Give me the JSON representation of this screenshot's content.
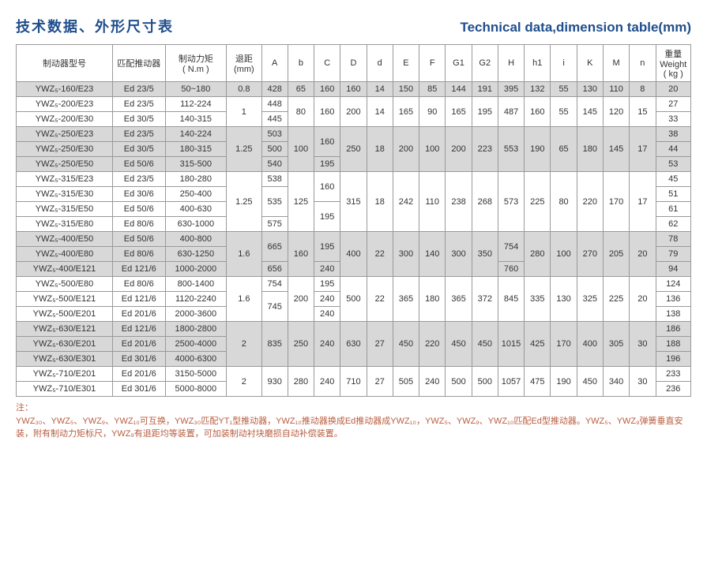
{
  "titles": {
    "cn": "技术数据、外形尺寸表",
    "en": "Technical data,dimension table(mm)"
  },
  "headers": {
    "model": "制动器型号",
    "pusher": "匹配推动器",
    "torque": "制动力矩\n( N.m )",
    "td": "退距\n(mm)",
    "cols": [
      "A",
      "b",
      "C",
      "D",
      "d",
      "E",
      "F",
      "G1",
      "G2",
      "H",
      "h1",
      "i",
      "K",
      "M",
      "n"
    ],
    "weight": "重量\nWeight\n( kg )"
  },
  "rows": [
    {
      "shaded": true,
      "model": "YWZ₅-160/E23",
      "pusher": "Ed 23/5",
      "torque": "50~180",
      "td": "0.8",
      "A": "428",
      "b": "65",
      "C": "160",
      "D": "160",
      "d": "14",
      "E": "150",
      "F": "85",
      "G1": "144",
      "G2": "191",
      "H": "395",
      "h1": "132",
      "i": "55",
      "K": "130",
      "M": "110",
      "n": "8",
      "wt": "20"
    },
    {
      "model": "YWZ₅-200/E23",
      "pusher": "Ed 23/5",
      "torque": "112-224",
      "td": "1",
      "A": "448",
      "b": "80",
      "C": "160",
      "D": "200",
      "d": "14",
      "E": "165",
      "F": "90",
      "G1": "165",
      "G2": "195",
      "H": "487",
      "h1": "160",
      "i": "55",
      "K": "145",
      "M": "120",
      "n": "15",
      "wt": "27"
    },
    {
      "model": "YWZ₅-200/E30",
      "pusher": "Ed 30/5",
      "torque": "140-315",
      "A": "445",
      "wt": "33"
    },
    {
      "shaded": true,
      "model": "YWZ₅-250/E23",
      "pusher": "Ed 23/5",
      "torque": "140-224",
      "td": "1.25",
      "A": "503",
      "b": "100",
      "C": "160",
      "D": "250",
      "d": "18",
      "E": "200",
      "F": "100",
      "G1": "200",
      "G2": "223",
      "H": "553",
      "h1": "190",
      "i": "65",
      "K": "180",
      "M": "145",
      "n": "17",
      "wt": "38"
    },
    {
      "shaded": true,
      "model": "YWZ₅-250/E30",
      "pusher": "Ed 30/5",
      "torque": "180-315",
      "A": "500",
      "wt": "44"
    },
    {
      "shaded": true,
      "model": "YWZ₅-250/E50",
      "pusher": "Ed 50/6",
      "torque": "315-500",
      "A": "540",
      "C": "195",
      "wt": "53"
    },
    {
      "model": "YWZ₅-315/E23",
      "pusher": "Ed 23/5",
      "torque": "180-280",
      "td": "1.25",
      "A": "538",
      "b": "125",
      "C": "160",
      "D": "315",
      "d": "18",
      "E": "242",
      "F": "110",
      "G1": "238",
      "G2": "268",
      "H": "573",
      "h1": "225",
      "i": "80",
      "K": "220",
      "M": "170",
      "n": "17",
      "wt": "45"
    },
    {
      "model": "YWZ₅-315/E30",
      "pusher": "Ed 30/6",
      "torque": "250-400",
      "A": "535",
      "wt": "51"
    },
    {
      "model": "YWZ₅-315/E50",
      "pusher": "Ed 50/6",
      "torque": "400-630",
      "C": "195",
      "wt": "61"
    },
    {
      "model": "YWZ₅-315/E80",
      "pusher": "Ed 80/6",
      "torque": "630-1000",
      "A": "575",
      "wt": "62"
    },
    {
      "shaded": true,
      "model": "YWZ₅-400/E50",
      "pusher": "Ed 50/6",
      "torque": "400-800",
      "td": "1.6",
      "A": "665",
      "b": "160",
      "C": "195",
      "D": "400",
      "d": "22",
      "E": "300",
      "F": "140",
      "G1": "300",
      "G2": "350",
      "H": "754",
      "h1": "280",
      "i": "100",
      "K": "270",
      "M": "205",
      "n": "20",
      "wt": "78"
    },
    {
      "shaded": true,
      "model": "YWZ₅-400/E80",
      "pusher": "Ed 80/6",
      "torque": "630-1250",
      "wt": "79"
    },
    {
      "shaded": true,
      "model": "YWZ₅-400/E121",
      "pusher": "Ed 121/6",
      "torque": "1000-2000",
      "A": "656",
      "C": "240",
      "H": "760",
      "wt": "94"
    },
    {
      "model": "YWZ₅-500/E80",
      "pusher": "Ed 80/6",
      "torque": "800-1400",
      "td": "1.6",
      "A": "754",
      "b": "200",
      "C": "195",
      "D": "500",
      "d": "22",
      "E": "365",
      "F": "180",
      "G1": "365",
      "G2": "372",
      "H": "845",
      "h1": "335",
      "i": "130",
      "K": "325",
      "M": "225",
      "n": "20",
      "wt": "124"
    },
    {
      "model": "YWZ₅-500/E121",
      "pusher": "Ed 121/6",
      "torque": "1120-2240",
      "A": "745",
      "C": "240",
      "wt": "136"
    },
    {
      "model": "YWZ₅-500/E201",
      "pusher": "Ed 201/6",
      "torque": "2000-3600",
      "C": "240",
      "wt": "138"
    },
    {
      "shaded": true,
      "model": "YWZ₅-630/E121",
      "pusher": "Ed 121/6",
      "torque": "1800-2800",
      "td": "2",
      "A": "835",
      "b": "250",
      "C": "240",
      "D": "630",
      "d": "27",
      "E": "450",
      "F": "220",
      "G1": "450",
      "G2": "450",
      "H": "1015",
      "h1": "425",
      "i": "170",
      "K": "400",
      "M": "305",
      "n": "30",
      "wt": "186"
    },
    {
      "shaded": true,
      "model": "YWZ₅-630/E201",
      "pusher": "Ed 201/6",
      "torque": "2500-4000",
      "wt": "188"
    },
    {
      "shaded": true,
      "model": "YWZ₅-630/E301",
      "pusher": "Ed 301/6",
      "torque": "4000-6300",
      "wt": "196"
    },
    {
      "model": "YWZ₅-710/E201",
      "pusher": "Ed 201/6",
      "torque": "3150-5000",
      "td": "2",
      "A": "930",
      "b": "280",
      "C": "240",
      "D": "710",
      "d": "27",
      "E": "505",
      "F": "240",
      "G1": "500",
      "G2": "500",
      "H": "1057",
      "h1": "475",
      "i": "190",
      "K": "450",
      "M": "340",
      "n": "30",
      "wt": "233"
    },
    {
      "model": "YWZ₅-710/E301",
      "pusher": "Ed 301/6",
      "torque": "5000-8000",
      "wt": "236"
    }
  ],
  "footnote": "注：\nYWZ₃₀、YWZ₅、YWZ₉、YWZ₁₀可互换，YWZ₃₀匹配YT₁型推动器，YWZ₁₀推动器换成Ed推动器成YWZ₁₀，YWZ₅、YWZ₉、YWZ₁₀匹配Ed型推动器。YWZ₅、YWZ₉弹簧垂直安装，附有制动力矩标尺，YWZ₉有退距均等装置，可加装制动衬块磨损自动补偿装置。"
}
